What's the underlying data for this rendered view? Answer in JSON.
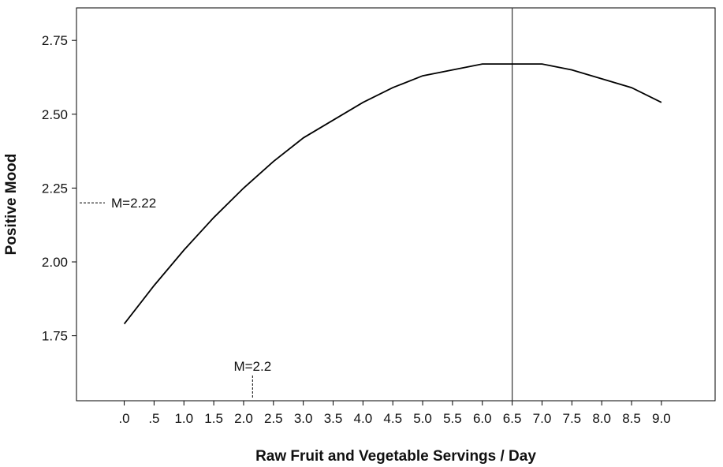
{
  "chart_data": {
    "type": "line",
    "title": "",
    "xlabel": "Raw Fruit and Vegetable Servings / Day",
    "ylabel": "Positive Mood",
    "x_tick_labels": [
      ".0",
      ".5",
      "1.0",
      "1.5",
      "2.0",
      "2.5",
      "3.0",
      "3.5",
      "4.0",
      "4.5",
      "5.0",
      "5.5",
      "6.0",
      "6.5",
      "7.0",
      "7.5",
      "8.0",
      "8.5",
      "9.0"
    ],
    "x_ticks": [
      0,
      0.5,
      1,
      1.5,
      2,
      2.5,
      3,
      3.5,
      4,
      4.5,
      5,
      5.5,
      6,
      6.5,
      7,
      7.5,
      8,
      8.5,
      9
    ],
    "y_tick_labels": [
      "1.75",
      "2.00",
      "2.25",
      "2.50",
      "2.75"
    ],
    "y_ticks": [
      1.75,
      2.0,
      2.25,
      2.5,
      2.75
    ],
    "xlim": [
      -0.8,
      9.9
    ],
    "ylim": [
      1.53,
      2.86
    ],
    "grid": false,
    "legend": "none",
    "line_color": "#000000",
    "series": [
      {
        "x": [
          0,
          0.5,
          1,
          1.5,
          2,
          2.5,
          3,
          3.5,
          4,
          4.5,
          5,
          5.5,
          6,
          6.5,
          7,
          7.5,
          8,
          8.5,
          9
        ],
        "values": [
          1.79,
          1.92,
          2.04,
          2.15,
          2.25,
          2.34,
          2.42,
          2.48,
          2.54,
          2.59,
          2.63,
          2.65,
          2.67,
          2.67,
          2.67,
          2.65,
          2.62,
          2.59,
          2.54
        ]
      }
    ],
    "reference_line": {
      "x": 6.5
    },
    "annotations": [
      {
        "text": "M=2.22",
        "axis": "y",
        "value": 2.2
      },
      {
        "text": "M=2.2",
        "axis": "x",
        "value": 2.15
      }
    ]
  }
}
